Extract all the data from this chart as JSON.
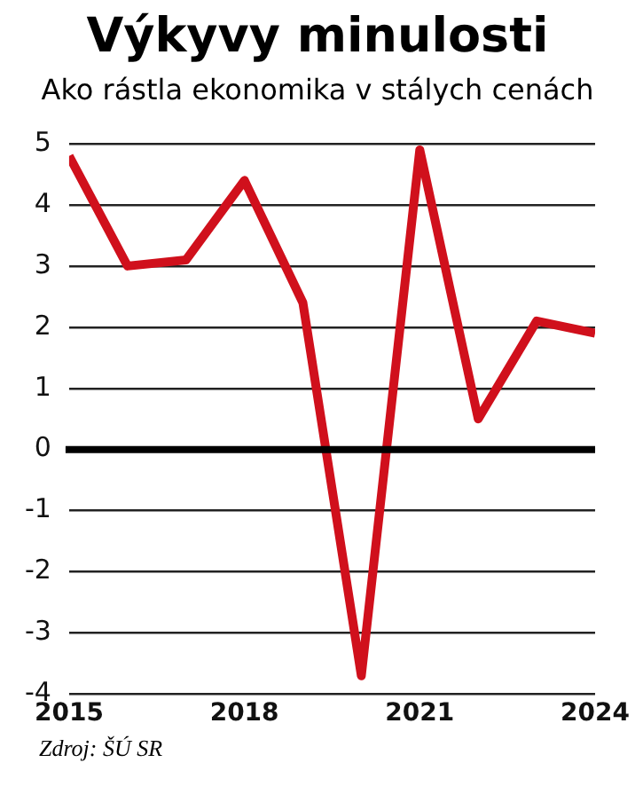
{
  "chart_data": {
    "type": "line",
    "title": "Výkyvy minulosti",
    "subtitle": "Ako rástla ekonomika v stálych cenách",
    "x": [
      2015,
      2016,
      2017,
      2018,
      2019,
      2020,
      2021,
      2022,
      2023,
      2024
    ],
    "series": [
      {
        "color": "#d0101c",
        "values": [
          4.8,
          3.0,
          3.1,
          4.4,
          2.4,
          -3.7,
          4.9,
          0.5,
          2.1,
          1.9
        ]
      }
    ],
    "xlim": [
      2015,
      2024
    ],
    "xticks": [
      2015,
      2018,
      2021,
      2024
    ],
    "ylim": [
      -4,
      5
    ],
    "yticks": [
      -4,
      -3,
      -2,
      -1,
      0,
      1,
      2,
      3,
      4,
      5
    ],
    "grid": "y",
    "legend": false,
    "marker": "none",
    "line_style": "solid",
    "ref_lines": [
      {
        "axis": "y",
        "value": 0,
        "color": "#000000"
      }
    ],
    "annotations": [
      "Zdroj: ŠÚ SR"
    ]
  }
}
